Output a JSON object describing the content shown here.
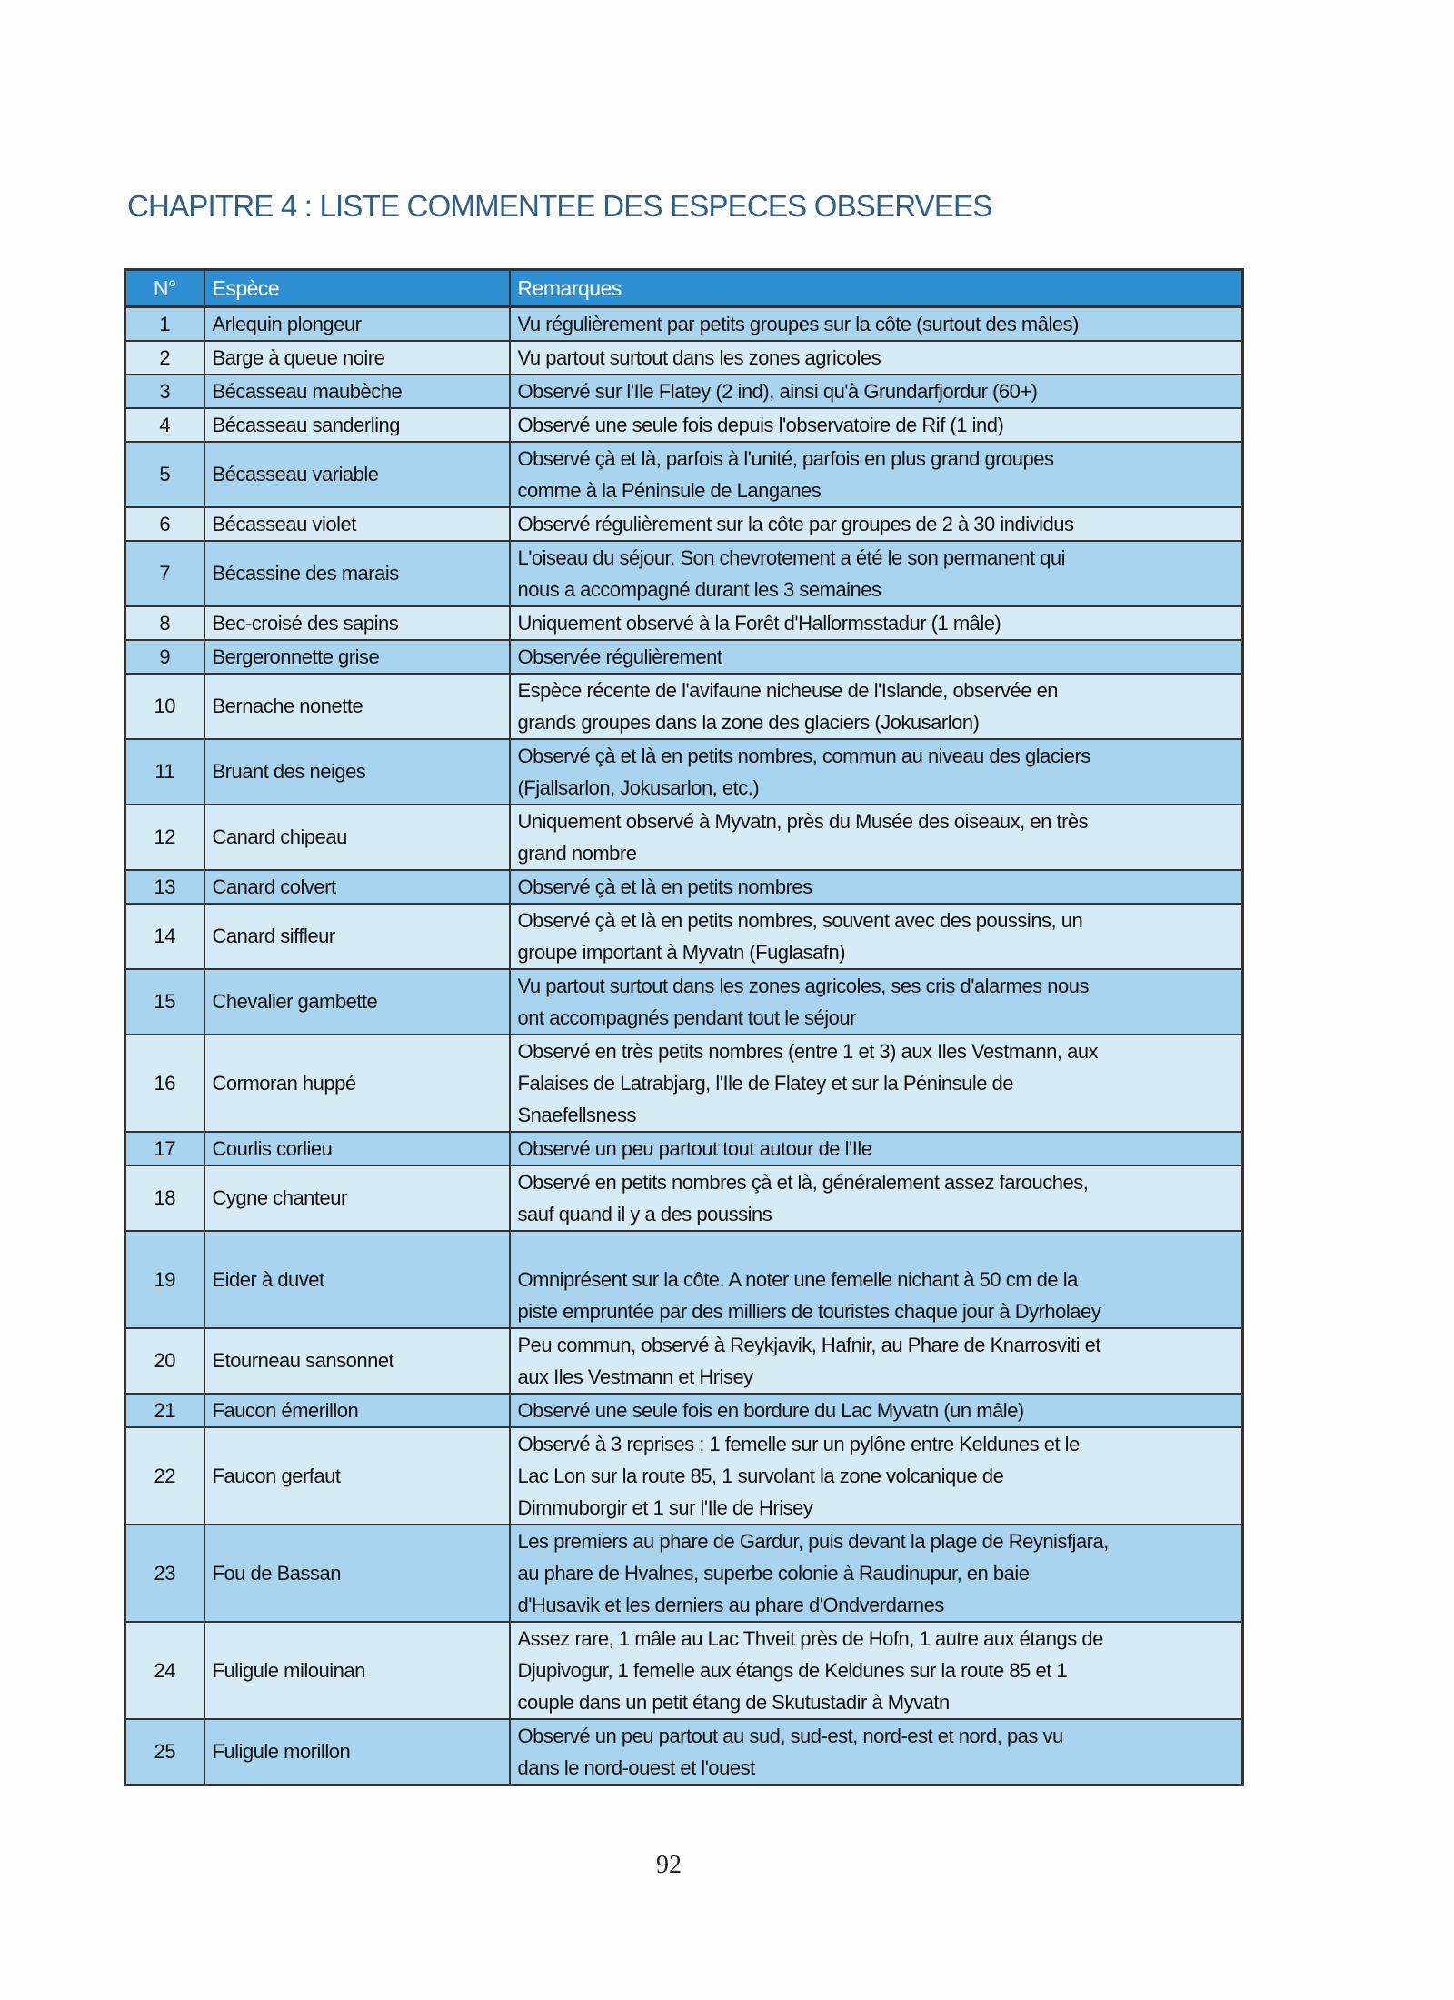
{
  "title": "CHAPITRE 4 : LISTE COMMENTEE DES ESPECES OBSERVEES",
  "colors": {
    "header": "#2f8fd3",
    "row_dark": "#a9d4ef",
    "row_light": "#d7ebf7",
    "title": "#2f5f88"
  },
  "table": {
    "headers": [
      "N°",
      "Espèce",
      "Remarques"
    ],
    "rows": [
      {
        "n": "1",
        "sp": "Arlequin plongeur",
        "rem": [
          "Vu régulièrement par petits groupes sur la côte (surtout des mâles)"
        ]
      },
      {
        "n": "2",
        "sp": "Barge à queue noire",
        "rem": [
          "Vu partout surtout dans les zones agricoles"
        ]
      },
      {
        "n": "3",
        "sp": "Bécasseau maubèche",
        "rem": [
          "Observé sur l'Ile Flatey (2 ind), ainsi qu'à Grundarfjordur (60+)"
        ]
      },
      {
        "n": "4",
        "sp": "Bécasseau sanderling",
        "rem": [
          "Observé une seule fois depuis l'observatoire de Rif (1 ind)"
        ]
      },
      {
        "n": "5",
        "sp": "Bécasseau variable",
        "rem": [
          "Observé çà et là, parfois à l'unité, parfois en plus grand groupes",
          "comme à la Péninsule de Langanes"
        ]
      },
      {
        "n": "6",
        "sp": "Bécasseau violet",
        "rem": [
          "Observé régulièrement sur la côte par groupes de 2 à 30 individus"
        ]
      },
      {
        "n": "7",
        "sp": "Bécassine des marais",
        "rem": [
          "L'oiseau du séjour. Son chevrotement a été le son permanent qui",
          "nous a accompagné durant les 3 semaines"
        ]
      },
      {
        "n": "8",
        "sp": "Bec-croisé des sapins",
        "rem": [
          "Uniquement observé à la Forêt d'Hallormsstadur (1 mâle)"
        ]
      },
      {
        "n": "9",
        "sp": "Bergeronnette grise",
        "rem": [
          "Observée régulièrement"
        ]
      },
      {
        "n": "10",
        "sp": "Bernache nonette",
        "rem": [
          "Espèce récente de l'avifaune nicheuse de l'Islande, observée en",
          "grands groupes dans la zone des glaciers (Jokusarlon)"
        ]
      },
      {
        "n": "11",
        "sp": "Bruant des neiges",
        "rem": [
          "Observé çà et là en petits nombres, commun au niveau des glaciers",
          "(Fjallsarlon, Jokusarlon, etc.)"
        ]
      },
      {
        "n": "12",
        "sp": "Canard chipeau",
        "rem": [
          "Uniquement observé à Myvatn, près du Musée des oiseaux, en très",
          "grand nombre"
        ]
      },
      {
        "n": "13",
        "sp": "Canard colvert",
        "rem": [
          "Observé çà et là en petits nombres"
        ]
      },
      {
        "n": "14",
        "sp": "Canard siffleur",
        "rem": [
          "Observé çà et là en petits nombres, souvent avec des poussins, un",
          "groupe important à Myvatn (Fuglasafn)"
        ]
      },
      {
        "n": "15",
        "sp": "Chevalier gambette",
        "rem": [
          "Vu partout surtout dans les zones agricoles, ses cris d'alarmes nous",
          "ont accompagnés pendant tout le séjour"
        ]
      },
      {
        "n": "16",
        "sp": "Cormoran huppé",
        "rem": [
          "Observé en très petits nombres (entre 1 et 3) aux Iles Vestmann, aux",
          "Falaises de Latrabjarg, l'Ile de Flatey et sur la Péninsule de",
          "Snaefellsness"
        ]
      },
      {
        "n": "17",
        "sp": "Courlis corlieu",
        "rem": [
          "Observé un peu partout tout autour de l'Ile"
        ]
      },
      {
        "n": "18",
        "sp": "Cygne chanteur",
        "rem": [
          "Observé en petits nombres çà et là, généralement assez farouches,",
          "sauf quand il y a des poussins"
        ]
      },
      {
        "n": "19",
        "sp": "Eider à duvet",
        "rem": [
          "Omniprésent sur la côte. A noter une femelle nichant à 50 cm de la",
          "piste empruntée par des milliers de touristes chaque jour à Dyrholaey"
        ]
      },
      {
        "n": "20",
        "sp": "Etourneau sansonnet",
        "rem": [
          "Peu commun, observé à Reykjavik, Hafnir, au Phare de Knarrosviti et",
          "aux Iles Vestmann et Hrisey"
        ]
      },
      {
        "n": "21",
        "sp": "Faucon émerillon",
        "rem": [
          "Observé une seule fois en bordure du Lac Myvatn (un mâle)"
        ]
      },
      {
        "n": "22",
        "sp": "Faucon gerfaut",
        "rem": [
          "Observé à 3 reprises : 1 femelle sur un pylône entre Keldunes et le",
          "Lac Lon sur la route 85, 1 survolant la zone volcanique de",
          "Dimmuborgir et 1 sur l'Ile de Hrisey"
        ]
      },
      {
        "n": "23",
        "sp": "Fou de Bassan",
        "rem": [
          "Les premiers au phare de Gardur, puis devant la plage de Reynisfjara,",
          "au phare de Hvalnes, superbe colonie à Raudinupur, en baie",
          "d'Husavik et les derniers au phare d'Ondverdarnes"
        ]
      },
      {
        "n": "24",
        "sp": "Fuligule milouinan",
        "rem": [
          "Assez rare, 1 mâle au Lac Thveit près de Hofn, 1 autre aux étangs de",
          "Djupivogur, 1 femelle aux étangs de Keldunes sur la route 85 et 1",
          "couple dans un petit étang de Skutustadir à Myvatn"
        ]
      },
      {
        "n": "25",
        "sp": "Fuligule morillon",
        "rem": [
          "Observé un peu partout au sud, sud-est, nord-est et nord, pas vu",
          "dans le nord-ouest et l'ouest"
        ]
      }
    ]
  },
  "page_number": "92"
}
